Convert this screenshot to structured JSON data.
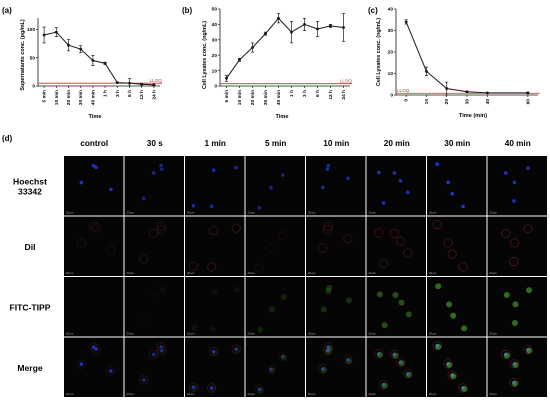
{
  "colors": {
    "line": "#1a1a1a",
    "lloq": "#c0392b",
    "hoechst": "#2b43ff",
    "dil": "#d23a2a",
    "fitc": "#5fd23a",
    "panel_bg": "#050505"
  },
  "chart_data": [
    {
      "id": "a",
      "panel_label": "(a)",
      "type": "line",
      "xlabel": "Time",
      "ylabel": "Supernatants conc. (pg/mL)",
      "categories": [
        "5 min",
        "10 min",
        "20 min",
        "30 min",
        "40 min",
        "1 h",
        "3 h",
        "6 h",
        "12 h",
        "24 h"
      ],
      "values": [
        90,
        95,
        72,
        65,
        45,
        40,
        6,
        5,
        3,
        2
      ],
      "errors": [
        14,
        8,
        10,
        6,
        9,
        2,
        1,
        8,
        1,
        1
      ],
      "yticks": [
        0,
        50,
        100
      ],
      "ylim": [
        0,
        120
      ],
      "lloq": {
        "label": "LLOQ",
        "value": 5
      }
    },
    {
      "id": "b",
      "panel_label": "(b)",
      "type": "line",
      "xlabel": "Time",
      "ylabel": "Cell Lysates conc. (ng/mL)",
      "categories": [
        "5 min",
        "10 min",
        "20 min",
        "30 min",
        "40 min",
        "1 h",
        "3 h",
        "6 h",
        "12 h",
        "24 h"
      ],
      "values": [
        5,
        17,
        25,
        34,
        44,
        35,
        40,
        37,
        39,
        38
      ],
      "errors": [
        2,
        1,
        3,
        1,
        3,
        7,
        4,
        5,
        1,
        9
      ],
      "yticks": [
        0,
        10,
        20,
        30,
        40,
        50
      ],
      "ylim": [
        0,
        50
      ],
      "lloq": {
        "label": "LLOQ",
        "value": 1.5
      }
    },
    {
      "id": "c",
      "panel_label": "(c)",
      "type": "line",
      "xlabel": "Time (min)",
      "ylabel": "Cell Lysates conc. (ng/mL)",
      "x": [
        0,
        10,
        20,
        30,
        40,
        60
      ],
      "xticks": [
        0,
        10,
        20,
        30,
        40,
        60
      ],
      "values": [
        34,
        11,
        3,
        1.5,
        1,
        1
      ],
      "errors": [
        1,
        2,
        3,
        0.3,
        0.2,
        0.3
      ],
      "yticks": [
        0,
        10,
        20,
        30,
        40
      ],
      "ylim": [
        0,
        40
      ],
      "xlim": [
        -5,
        65
      ],
      "lloq": {
        "label": "LLOQ",
        "value": 0.8
      }
    }
  ],
  "microscopy": {
    "panel_label": "(d)",
    "columns": [
      "control",
      "30 s",
      "1 min",
      "5 min",
      "10 min",
      "20 min",
      "30 min",
      "40 min"
    ],
    "rows": [
      "Hoechst\n33342",
      "Dil",
      "FITC-TIPP",
      "Merge"
    ],
    "scale_label": "20 μm",
    "intensity": {
      "hoechst": [
        0.7,
        0.5,
        0.6,
        0.5,
        0.6,
        0.7,
        0.8,
        0.7
      ],
      "dil": [
        0.3,
        0.4,
        0.5,
        0.2,
        0.4,
        0.5,
        0.6,
        0.6
      ],
      "fitc": [
        0.0,
        0.05,
        0.1,
        0.2,
        0.3,
        0.5,
        0.7,
        0.7
      ]
    }
  }
}
